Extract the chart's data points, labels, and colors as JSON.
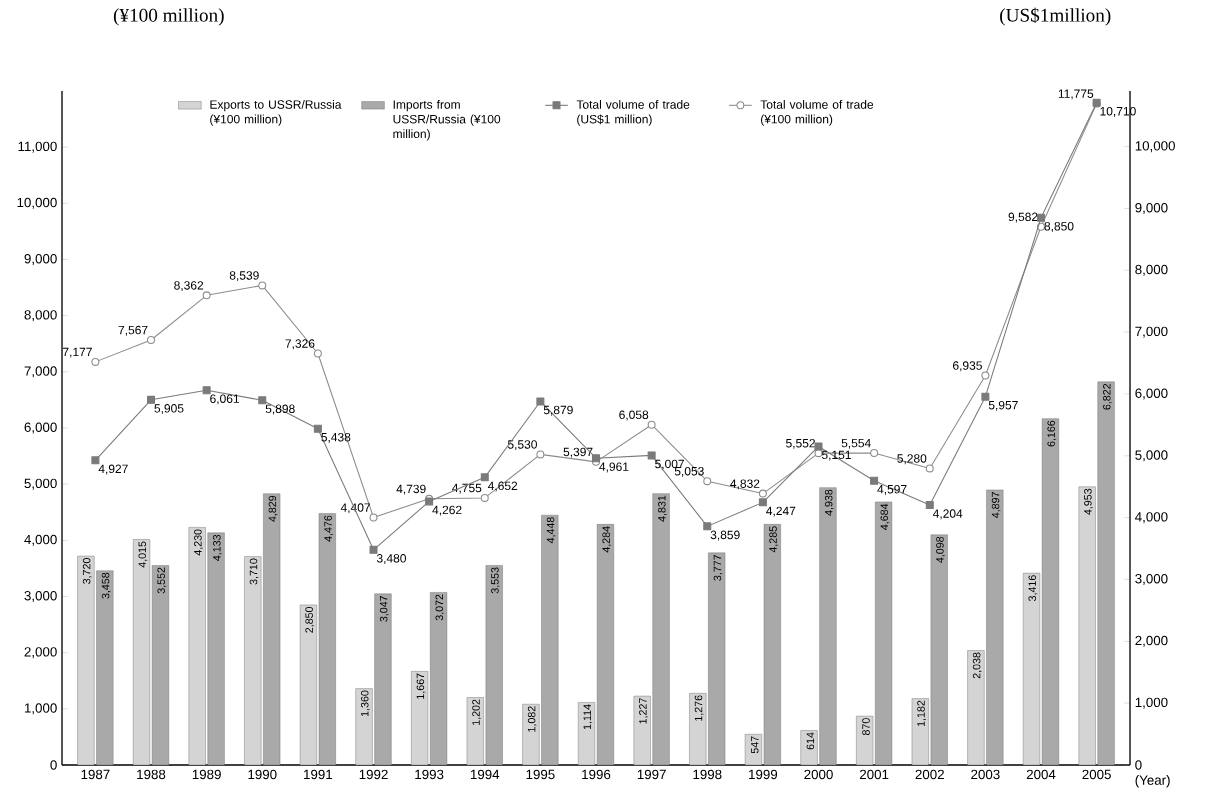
{
  "chart_data": {
    "type": "bar",
    "categories": [
      "1987",
      "1988",
      "1989",
      "1990",
      "1991",
      "1992",
      "1993",
      "1994",
      "1995",
      "1996",
      "1997",
      "1998",
      "1999",
      "2000",
      "2001",
      "2002",
      "2003",
      "2004",
      "2005"
    ],
    "xlabel": "(Year)",
    "ylabel": "(¥100 million)",
    "y2label": "(US$1million)",
    "ylim": [
      0,
      12000
    ],
    "yticks": [
      0,
      {
        "value": 1000,
        "label": "1,000"
      },
      {
        "value": 2000,
        "label": "2,000"
      },
      {
        "value": 3000,
        "label": "3,000"
      },
      {
        "value": 4000,
        "label": "4,000"
      },
      {
        "value": 5000,
        "label": "5,000"
      },
      {
        "value": 6000,
        "label": "6,000"
      },
      {
        "value": 7000,
        "label": "7,000"
      },
      {
        "value": 8000,
        "label": "8,000"
      },
      {
        "value": 9000,
        "label": "9,000"
      },
      {
        "value": 10000,
        "label": "10,000"
      },
      {
        "value": 11000,
        "label": "11,000"
      }
    ],
    "y2lim": [
      0,
      10900
    ],
    "y2ticks": [
      0,
      {
        "value": 1000,
        "label": "1,000"
      },
      {
        "value": 2000,
        "label": "2,000"
      },
      {
        "value": 3000,
        "label": "3,000"
      },
      {
        "value": 4000,
        "label": "4,000"
      },
      {
        "value": 5000,
        "label": "5,000"
      },
      {
        "value": 6000,
        "label": "6,000"
      },
      {
        "value": 7000,
        "label": "7,000"
      },
      {
        "value": 8000,
        "label": "8,000"
      },
      {
        "value": 9000,
        "label": "9,000"
      },
      {
        "value": 10000,
        "label": "10,000"
      }
    ],
    "legend": "top",
    "series": [
      {
        "name": "Exports to USSR/Russia (¥100 million)",
        "color": "#d4d4d4",
        "values": [
          3720,
          4015,
          4230,
          3710,
          2850,
          1360,
          1667,
          1202,
          1082,
          1114,
          1227,
          1276,
          547,
          614,
          870,
          1182,
          2038,
          3416,
          4953
        ],
        "value_labels": [
          "3,720",
          "4,015",
          "4,230",
          "3,710",
          "2,850",
          "1,360",
          "1,667",
          "1,202",
          "1,082",
          "1,114",
          "1,227",
          "1,276",
          "547",
          "614",
          "870",
          "1,182",
          "2,038",
          "3,416",
          "4,953"
        ]
      },
      {
        "name": "Imports from USSR/Russia (¥100 million)",
        "color": "#a9a9a9",
        "values": [
          3458,
          3552,
          4133,
          4829,
          4476,
          3047,
          3072,
          3553,
          4448,
          4284,
          4831,
          3777,
          4285,
          4938,
          4684,
          4098,
          4897,
          6166,
          6822
        ],
        "value_labels": [
          "3,458",
          "3,552",
          "4,133",
          "4,829",
          "4,476",
          "3,047",
          "3,072",
          "3,553",
          "4,448",
          "4,284",
          "4,831",
          "3,777",
          "4,285",
          "4,938",
          "4,684",
          "4,098",
          "4,897",
          "6,166",
          "6,822"
        ]
      },
      {
        "name": "Total volume of trade (US$1 million)",
        "type": "line",
        "axis": "y2",
        "marker": "square",
        "color": "#7a7a7a",
        "values": [
          4927,
          5905,
          6061,
          5898,
          5438,
          3480,
          4262,
          4652,
          5879,
          4961,
          5007,
          3859,
          4247,
          5151,
          4597,
          4204,
          5957,
          8850,
          10710
        ],
        "value_labels": [
          "4,927",
          "5,905",
          "6,061",
          "5,898",
          "5,438",
          "3,480",
          "4,262",
          "4,652",
          "5,879",
          "4,961",
          "5,007",
          "3,859",
          "4,247",
          "5,151",
          "4,597",
          "4,204",
          "5,957",
          "8,850",
          "10,710"
        ]
      },
      {
        "name": "Total volume of trade (¥100 million)",
        "type": "line",
        "marker": "circle",
        "color": "#8c8c8c",
        "values": [
          7177,
          7567,
          8362,
          8539,
          7326,
          4407,
          4739,
          4755,
          5530,
          5397,
          6058,
          5053,
          4832,
          5552,
          5554,
          5280,
          6935,
          9582,
          11775
        ],
        "value_labels": [
          "7,177",
          "7,567",
          "8,362",
          "8,539",
          "7,326",
          "4,407",
          "4,739",
          "4,755",
          "5,530",
          "5,397",
          "6,058",
          "5,053",
          "4,832",
          "5,552",
          "5,554",
          "5,280",
          "6,935",
          "9,582",
          "11,775"
        ]
      }
    ]
  }
}
